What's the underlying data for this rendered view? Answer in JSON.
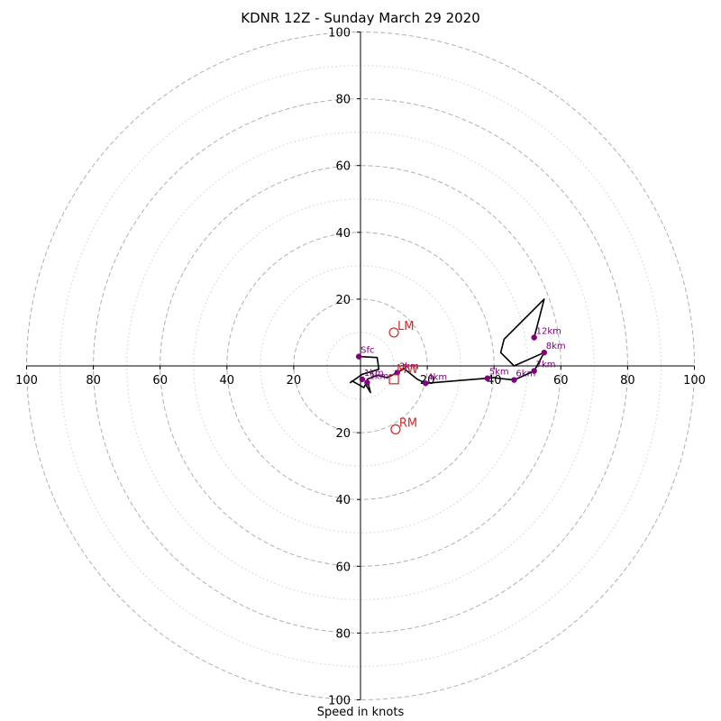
{
  "chart_data": {
    "type": "scatter",
    "title": "KDNR 12Z - Sunday March 29 2020",
    "xlabel": "Speed in knots",
    "ylabel": "",
    "xlim": [
      -100,
      100
    ],
    "ylim": [
      -100,
      100
    ],
    "grid": true,
    "rings": [
      20,
      40,
      60,
      80,
      100
    ],
    "minor_rings": [
      10,
      30,
      50,
      70,
      90
    ],
    "ticks": {
      "x": [
        "100",
        "80",
        "60",
        "40",
        "20",
        "20",
        "40",
        "60",
        "80",
        "100"
      ],
      "y": [
        "100",
        "80",
        "60",
        "40",
        "20",
        "20",
        "40",
        "60",
        "80",
        "100"
      ]
    },
    "hodograph": [
      [
        -0.5,
        2.8
      ],
      [
        5,
        2.5
      ],
      [
        5.5,
        -1
      ],
      [
        0.5,
        -2.5
      ],
      [
        -3,
        -5
      ],
      [
        -2.5,
        -4.5
      ],
      [
        1,
        -6.5
      ],
      [
        1.5,
        -5.5
      ],
      [
        3,
        -8
      ],
      [
        2,
        -4
      ],
      [
        5,
        -2.8
      ],
      [
        8,
        -3.5
      ],
      [
        11,
        -2
      ],
      [
        13,
        -0.8
      ],
      [
        17,
        -4
      ],
      [
        19.5,
        -5.2
      ],
      [
        28,
        -4.5
      ],
      [
        38,
        -3.7
      ],
      [
        40,
        -3.5
      ],
      [
        42,
        -3.8
      ],
      [
        46,
        -4.2
      ],
      [
        52,
        -1.5
      ],
      [
        55,
        4
      ],
      [
        46,
        0
      ],
      [
        42,
        4
      ],
      [
        43,
        8
      ],
      [
        55,
        20
      ],
      [
        52,
        8.5
      ]
    ],
    "levels": [
      {
        "label": "Sfc",
        "x": -0.5,
        "y": 2.8
      },
      {
        "label": "1km",
        "x": 0.5,
        "y": -4
      },
      {
        "label": "2km",
        "x": 2,
        "y": -5
      },
      {
        "label": "3km",
        "x": 11,
        "y": -2
      },
      {
        "label": "4km",
        "x": 19.5,
        "y": -5.2
      },
      {
        "label": "5km",
        "x": 38,
        "y": -3.7
      },
      {
        "label": "6km",
        "x": 46,
        "y": -4.2
      },
      {
        "label": "7km",
        "x": 52,
        "y": -1.5
      },
      {
        "label": "8km",
        "x": 55,
        "y": 4
      },
      {
        "label": "12km",
        "x": 52,
        "y": 8.5
      }
    ],
    "storm_motions": [
      {
        "label": "LM",
        "x": 10,
        "y": 10
      },
      {
        "label": "RM",
        "x": 10.5,
        "y": -19
      }
    ],
    "mean_wind": {
      "label": "MW",
      "x": 10,
      "y": -4
    }
  },
  "colors": {
    "hodograph": "#000000",
    "points": "#800080",
    "motion": "#d62728",
    "grid": "#b0b0b0"
  }
}
